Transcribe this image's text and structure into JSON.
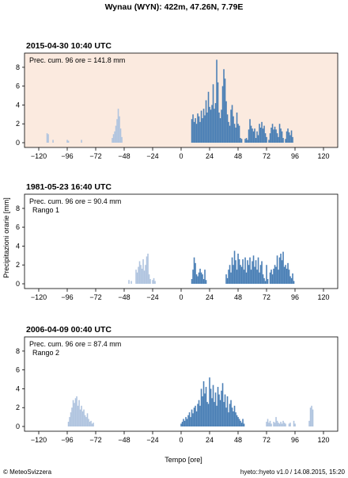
{
  "title": "Wynau (WYN): 422m, 47.26N, 7.79E",
  "ylabel": "Precipitazioni orarie [mm]",
  "xlabel": "Tempo [ore]",
  "footer_left": "© MeteoSvizzera",
  "footer_right": "hyeto::hyeto v1.0 / 14.08.2015, 15:20",
  "colors": {
    "main": "#4a7fb5",
    "secondary": "#b0c4df",
    "highlight_bg": "#fbeadf",
    "axis": "#000000"
  },
  "chart_data": [
    {
      "type": "bar",
      "title": "2015-04-30 10:40 UTC",
      "annotation": "Prec. cum. 96 ore = 141.8 mm",
      "rank": "",
      "highlighted": true,
      "xlim": [
        -132,
        132
      ],
      "ylim": [
        0,
        9
      ],
      "xticks": [
        -120,
        -96,
        -72,
        -48,
        -24,
        0,
        24,
        48,
        72,
        96,
        120
      ],
      "yticks": [
        0,
        2,
        4,
        6,
        8
      ],
      "series": [
        {
          "style": "secondary",
          "x": [
            -113,
            -112,
            -108,
            -96,
            -95,
            -84,
            -58,
            -57,
            -56,
            -55,
            -54,
            -53,
            -52,
            -51,
            -50
          ],
          "values": [
            1.0,
            0.9,
            0.3,
            0.3,
            0.2,
            0.3,
            0.5,
            0.9,
            1.2,
            1.8,
            2.5,
            3.6,
            2.8,
            1.5,
            0.6
          ]
        },
        {
          "style": "main",
          "x": [
            9,
            10,
            11,
            12,
            13,
            14,
            15,
            16,
            17,
            18,
            19,
            20,
            21,
            22,
            23,
            24,
            25,
            26,
            27,
            28,
            29,
            30,
            31,
            32,
            33,
            34,
            35,
            36,
            37,
            38,
            39,
            40,
            41,
            42,
            43,
            44,
            45,
            46,
            47,
            48,
            49,
            50,
            51,
            54,
            55,
            56,
            57,
            58,
            59,
            60,
            61,
            62,
            63,
            64,
            65,
            66,
            67,
            68,
            69,
            70,
            71,
            72,
            74,
            75,
            76,
            77,
            78,
            79,
            80,
            81,
            82,
            83,
            84,
            85,
            86,
            88,
            89,
            90,
            91,
            92,
            93,
            94
          ],
          "values": [
            2.5,
            3.0,
            2.2,
            2.6,
            2.0,
            3.1,
            2.8,
            2.2,
            3.4,
            2.6,
            3.6,
            2.9,
            4.5,
            3.2,
            5.4,
            3.8,
            3.5,
            4.0,
            6.2,
            3.6,
            4.2,
            8.8,
            6.4,
            3.2,
            2.6,
            3.5,
            6.0,
            7.8,
            6.8,
            4.4,
            3.0,
            2.2,
            1.8,
            3.5,
            4.0,
            2.8,
            2.0,
            1.6,
            3.2,
            2.0,
            1.8,
            0.5,
            0.4,
            0.4,
            0.5,
            0.3,
            1.4,
            2.5,
            1.8,
            1.5,
            1.2,
            1.5,
            0.5,
            1.2,
            0.8,
            2.0,
            1.6,
            2.2,
            1.5,
            1.8,
            1.0,
            0.6,
            0.3,
            1.0,
            1.6,
            2.0,
            1.4,
            1.7,
            1.4,
            1.0,
            0.6,
            2.0,
            1.5,
            1.2,
            0.5,
            0.4,
            1.2,
            1.5,
            1.1,
            0.8,
            1.3,
            0.6
          ]
        }
      ]
    },
    {
      "type": "bar",
      "title": "1981-05-23 16:40 UTC",
      "annotation": "Prec. cum. 96 ore = 90.4 mm",
      "rank": "Rango 1",
      "highlighted": false,
      "xlim": [
        -132,
        132
      ],
      "ylim": [
        0,
        9
      ],
      "xticks": [
        -120,
        -96,
        -72,
        -48,
        -24,
        0,
        24,
        48,
        72,
        96,
        120
      ],
      "yticks": [
        0,
        2,
        4,
        6,
        8
      ],
      "series": [
        {
          "style": "secondary",
          "x": [
            -44,
            -42,
            -38,
            -37,
            -36,
            -35,
            -34,
            -33,
            -32,
            -31,
            -30,
            -29,
            -28,
            -27,
            -26,
            -24,
            -23,
            -22
          ],
          "values": [
            0.4,
            0.3,
            1.5,
            1.2,
            1.8,
            2.4,
            2.0,
            1.6,
            2.6,
            1.4,
            2.0,
            2.9,
            3.2,
            1.0,
            0.5,
            0.4,
            0.6,
            0.3
          ]
        },
        {
          "style": "main",
          "x": [
            9,
            10,
            11,
            12,
            13,
            14,
            15,
            16,
            17,
            18,
            19,
            20,
            21,
            38,
            39,
            40,
            41,
            42,
            43,
            44,
            45,
            46,
            47,
            48,
            49,
            50,
            51,
            52,
            53,
            54,
            55,
            56,
            57,
            58,
            59,
            60,
            61,
            62,
            63,
            64,
            65,
            66,
            67,
            68,
            69,
            70,
            71,
            72,
            73,
            75,
            76,
            77,
            78,
            79,
            80,
            81,
            82,
            83,
            84,
            85,
            86,
            87,
            88,
            89,
            90,
            91,
            92,
            93,
            94,
            95
          ],
          "values": [
            0.5,
            1.5,
            2.8,
            2.2,
            1.0,
            0.8,
            1.2,
            1.6,
            1.2,
            1.0,
            0.5,
            1.5,
            0.4,
            1.0,
            0.6,
            1.5,
            2.0,
            1.2,
            2.8,
            2.0,
            3.5,
            2.5,
            1.5,
            3.2,
            2.6,
            2.0,
            1.8,
            2.6,
            1.5,
            2.8,
            1.2,
            2.5,
            2.0,
            2.8,
            1.5,
            2.4,
            3.0,
            1.8,
            2.5,
            1.5,
            2.8,
            1.2,
            2.0,
            2.4,
            1.0,
            0.6,
            0.3,
            2.0,
            0.5,
            1.2,
            1.5,
            1.0,
            1.6,
            2.0,
            1.8,
            3.0,
            1.5,
            2.8,
            3.2,
            2.5,
            3.4,
            1.8,
            2.0,
            1.6,
            2.2,
            1.5,
            0.8,
            0.6,
            1.1,
            0.3
          ]
        }
      ]
    },
    {
      "type": "bar",
      "title": "2006-04-09 00:40 UTC",
      "annotation": "Prec. cum. 96 ore = 87.4 mm",
      "rank": "Rango 2",
      "highlighted": false,
      "xlim": [
        -132,
        132
      ],
      "ylim": [
        0,
        9
      ],
      "xticks": [
        -120,
        -96,
        -72,
        -48,
        -24,
        0,
        24,
        48,
        72,
        96,
        120
      ],
      "yticks": [
        0,
        2,
        4,
        6,
        8
      ],
      "series": [
        {
          "style": "secondary",
          "x": [
            -95,
            -94,
            -93,
            -92,
            -91,
            -90,
            -89,
            -88,
            -87,
            -86,
            -85,
            -84,
            -83,
            -82,
            -81,
            -80,
            -79,
            -78,
            -77,
            -76,
            -75,
            -74,
            72,
            73,
            74,
            75,
            76,
            78,
            79,
            80,
            81,
            82,
            83,
            84,
            85,
            86,
            87,
            88,
            91,
            92,
            95,
            96,
            108,
            109,
            110,
            111
          ],
          "values": [
            0.5,
            1.0,
            1.5,
            2.0,
            2.8,
            2.5,
            3.0,
            3.2,
            2.2,
            2.8,
            1.8,
            2.2,
            1.6,
            1.8,
            1.2,
            1.0,
            1.4,
            0.8,
            0.5,
            0.6,
            0.3,
            0.4,
            0.5,
            0.8,
            0.4,
            0.6,
            0.3,
            0.5,
            0.4,
            1.0,
            0.6,
            0.4,
            0.3,
            0.5,
            0.3,
            0.6,
            0.4,
            0.3,
            0.3,
            0.4,
            0.6,
            0.3,
            0.6,
            2.0,
            2.2,
            1.8
          ]
        },
        {
          "style": "main",
          "x": [
            0,
            1,
            2,
            3,
            4,
            5,
            6,
            7,
            8,
            9,
            10,
            11,
            12,
            13,
            14,
            15,
            16,
            17,
            18,
            19,
            20,
            21,
            22,
            23,
            24,
            25,
            26,
            27,
            28,
            29,
            30,
            31,
            32,
            33,
            34,
            35,
            36,
            37,
            38,
            39,
            40,
            41,
            42,
            43,
            44,
            45,
            46,
            47,
            48,
            49,
            50,
            51,
            52,
            53
          ],
          "values": [
            0.3,
            0.5,
            0.8,
            0.6,
            1.0,
            0.8,
            1.2,
            1.5,
            1.0,
            1.8,
            1.4,
            2.0,
            2.2,
            1.6,
            2.4,
            2.8,
            2.2,
            4.0,
            3.2,
            4.8,
            3.5,
            4.2,
            2.6,
            2.4,
            5.2,
            4.0,
            3.0,
            4.4,
            2.6,
            3.6,
            2.2,
            4.2,
            3.4,
            2.8,
            3.8,
            4.6,
            2.6,
            3.4,
            2.0,
            3.2,
            1.5,
            2.4,
            2.8,
            2.0,
            1.6,
            2.2,
            1.5,
            1.2,
            1.0,
            0.8,
            0.6,
            0.4,
            0.8,
            0.3
          ]
        }
      ]
    }
  ]
}
